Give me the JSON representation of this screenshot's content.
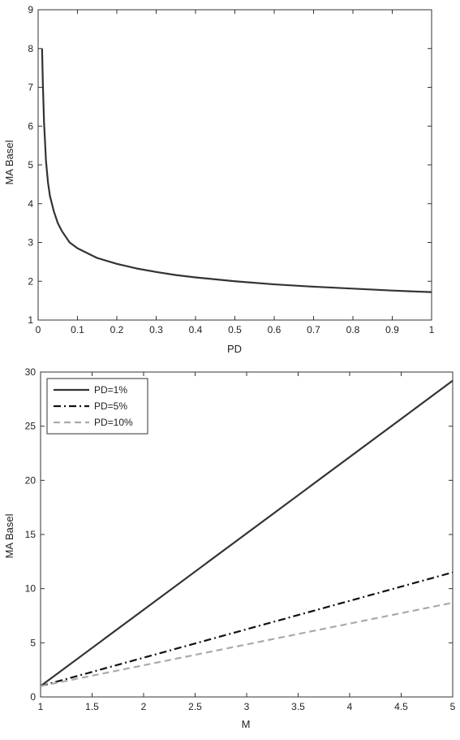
{
  "chart_data": [
    {
      "type": "line",
      "title": "",
      "xlabel": "PD",
      "ylabel": "MA Basel",
      "xlim": [
        0,
        1
      ],
      "ylim": [
        1,
        9
      ],
      "x_ticks": [
        "0",
        "0.1",
        "0.2",
        "0.3",
        "0.4",
        "0.5",
        "0.6",
        "0.7",
        "0.8",
        "0.9",
        "1"
      ],
      "y_ticks": [
        "1",
        "2",
        "3",
        "4",
        "5",
        "6",
        "7",
        "8",
        "9"
      ],
      "grid": false,
      "legend": null,
      "series": [
        {
          "color": "#333333",
          "style": "solid",
          "x": [
            0.01,
            0.012,
            0.015,
            0.02,
            0.025,
            0.03,
            0.04,
            0.05,
            0.06,
            0.08,
            0.1,
            0.15,
            0.2,
            0.25,
            0.3,
            0.35,
            0.4,
            0.5,
            0.6,
            0.7,
            0.8,
            0.9,
            1.0
          ],
          "y": [
            8.0,
            7.1,
            6.1,
            5.1,
            4.55,
            4.2,
            3.8,
            3.5,
            3.3,
            3.0,
            2.85,
            2.6,
            2.45,
            2.33,
            2.24,
            2.16,
            2.1,
            2.0,
            1.92,
            1.86,
            1.81,
            1.76,
            1.72
          ]
        }
      ]
    },
    {
      "type": "line",
      "title": "",
      "xlabel": "M",
      "ylabel": "MA Basel",
      "xlim": [
        1,
        5
      ],
      "ylim": [
        0,
        30
      ],
      "x_ticks": [
        "1",
        "1.5",
        "2",
        "2.5",
        "3",
        "3.5",
        "4",
        "4.5",
        "5"
      ],
      "y_ticks": [
        "0",
        "5",
        "10",
        "15",
        "20",
        "25",
        "30"
      ],
      "grid": false,
      "legend": "top-left",
      "series": [
        {
          "name": "PD=1%",
          "color": "#333333",
          "style": "solid",
          "x": [
            1,
            5
          ],
          "y": [
            1.0,
            29.2
          ]
        },
        {
          "name": "PD=5%",
          "color": "#111111",
          "style": "dashdot",
          "x": [
            1,
            5
          ],
          "y": [
            1.0,
            11.5
          ]
        },
        {
          "name": "PD=10%",
          "color": "#aaaaaa",
          "style": "dashed",
          "x": [
            1,
            5
          ],
          "y": [
            1.0,
            8.7
          ]
        }
      ]
    }
  ]
}
